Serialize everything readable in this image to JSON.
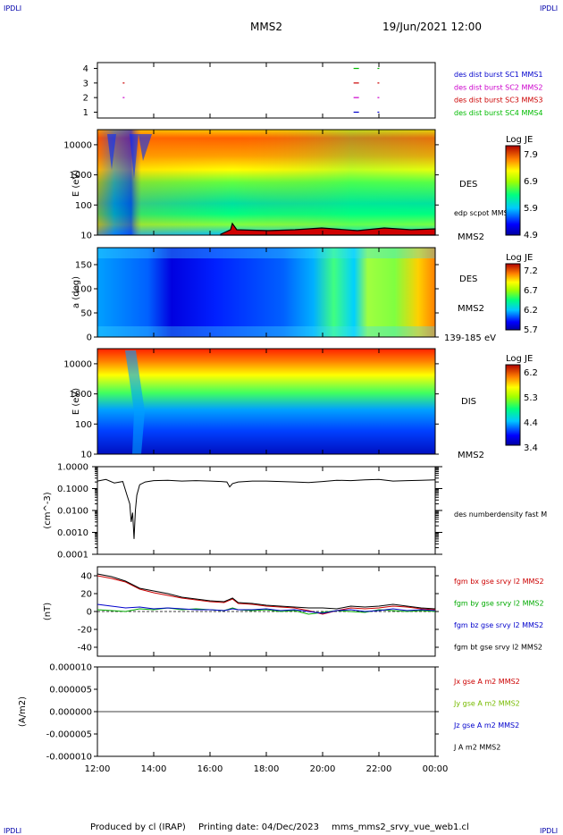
{
  "header": {
    "corner_tl": "IPDLI",
    "corner_tr": "IPDLI",
    "corner_bl": "IPDLI",
    "corner_br": "IPDLI",
    "spacecraft": "MMS2",
    "datetime": "19/Jun/2021 12:00"
  },
  "footer": {
    "producer": "Produced by cl (IRAP)",
    "printing": "Printing date: 04/Dec/2023",
    "script": "mms_mms2_srvy_vue_web1.cl"
  },
  "time_axis": [
    "12:00",
    "14:00",
    "16:00",
    "18:00",
    "20:00",
    "22:00",
    "00:00"
  ],
  "chart_data": [
    {
      "type": "scatter",
      "yticks": [
        "1",
        "2",
        "3",
        "4"
      ],
      "ylim": [
        0.6,
        4.4
      ],
      "series": [
        {
          "name": "des dist burst SC1 MMS1",
          "color": "#0000cc",
          "y": 1,
          "x": [
            21.1,
            21.95
          ]
        },
        {
          "name": "des dist burst SC2 MMS2",
          "color": "#cc00cc",
          "y": 2,
          "x": [
            12.9,
            21.1,
            21.95
          ]
        },
        {
          "name": "des dist burst SC3 MMS3",
          "color": "#cc0000",
          "y": 3,
          "x": [
            12.9,
            21.1,
            21.95
          ]
        },
        {
          "name": "des dist burst SC4 MMS4",
          "color": "#00bb00",
          "y": 4,
          "x": [
            21.1,
            21.95
          ]
        }
      ]
    },
    {
      "type": "heatmap",
      "ylabel": "E (eV)",
      "yticks": [
        "10",
        "100",
        "1000",
        "10000"
      ],
      "instrument": "DES",
      "overlay_label": "edp scpot MMS2",
      "spacecraft": "MMS2",
      "colorbar": {
        "title": "Log JE",
        "ticks": [
          "7.9",
          "6.9",
          "5.9",
          "4.9"
        ]
      }
    },
    {
      "type": "heatmap",
      "ylabel": "a (deg)",
      "yticks": [
        "0",
        "50",
        "100",
        "150"
      ],
      "instrument": "DES",
      "spacecraft": "MMS2",
      "energy_range": "139-185 eV",
      "colorbar": {
        "title": "Log JE",
        "ticks": [
          "7.2",
          "6.7",
          "6.2",
          "5.7"
        ]
      }
    },
    {
      "type": "heatmap",
      "ylabel": "E (eV)",
      "yticks": [
        "10",
        "100",
        "1000",
        "10000"
      ],
      "instrument": "DIS",
      "spacecraft": "MMS2",
      "colorbar": {
        "title": "Log JE",
        "ticks": [
          "6.2",
          "5.3",
          "4.4",
          "3.4"
        ]
      }
    },
    {
      "type": "line",
      "ylabel": "(cm^-3)",
      "log": true,
      "yticks": [
        "1.0000",
        "0.1000",
        "0.0100",
        "0.0010",
        "0.0001"
      ],
      "series": [
        {
          "name": "des numberdensity fast M",
          "color": "#000000",
          "x": [
            12,
            12.3,
            12.6,
            12.9,
            13.05,
            13.15,
            13.2,
            13.25,
            13.3,
            13.35,
            13.4,
            13.5,
            13.7,
            14,
            14.5,
            15,
            15.5,
            16,
            16.4,
            16.6,
            16.7,
            16.8,
            17,
            17.5,
            18,
            18.5,
            19,
            19.5,
            20,
            20.5,
            21,
            21.5,
            22,
            22.5,
            23,
            23.5,
            24
          ],
          "y": [
            0.22,
            0.26,
            0.18,
            0.21,
            0.05,
            0.02,
            0.003,
            0.008,
            0.0005,
            0.01,
            0.05,
            0.15,
            0.2,
            0.23,
            0.24,
            0.22,
            0.23,
            0.22,
            0.21,
            0.2,
            0.12,
            0.17,
            0.2,
            0.22,
            0.22,
            0.21,
            0.2,
            0.19,
            0.21,
            0.24,
            0.23,
            0.25,
            0.26,
            0.22,
            0.23,
            0.24,
            0.25
          ]
        }
      ]
    },
    {
      "type": "line",
      "ylabel": "(nT)",
      "yticks": [
        "40",
        "20",
        "0",
        "-20",
        "-40"
      ],
      "ylim": [
        -50,
        50
      ],
      "x": [
        12,
        12.5,
        13,
        13.5,
        14,
        14.5,
        15,
        15.5,
        16,
        16.5,
        16.8,
        17,
        17.5,
        18,
        18.5,
        19,
        19.5,
        20,
        20.5,
        21,
        21.5,
        22,
        22.5,
        23,
        23.5,
        24
      ],
      "series": [
        {
          "name": "fgm bx gse srvy l2 MMS2",
          "color": "#cc0000",
          "values": [
            40,
            37,
            33,
            25,
            21,
            18,
            15,
            13,
            11,
            10,
            14,
            9,
            8,
            6,
            5,
            4,
            1,
            -3,
            1,
            4,
            3,
            4,
            6,
            5,
            3,
            2
          ]
        },
        {
          "name": "fgm by gse srvy l2 MMS2",
          "color": "#00aa00",
          "values": [
            2,
            1,
            0,
            3,
            2,
            4,
            2,
            3,
            2,
            1,
            4,
            2,
            1,
            2,
            0,
            1,
            -3,
            -1,
            1,
            0,
            -1,
            2,
            1,
            0,
            1,
            0
          ]
        },
        {
          "name": "fgm bz gse srvy l2 MMS2",
          "color": "#0000cc",
          "values": [
            8,
            6,
            4,
            5,
            3,
            4,
            3,
            2,
            2,
            1,
            3,
            2,
            2,
            3,
            1,
            2,
            0,
            -2,
            1,
            2,
            0,
            1,
            3,
            1,
            2,
            1
          ]
        },
        {
          "name": "fgm bt gse srvy l2 MMS2",
          "color": "#000000",
          "values": [
            42,
            39,
            34,
            26,
            23,
            20,
            16,
            14,
            12,
            11,
            15,
            10,
            9,
            7,
            6,
            5,
            4,
            4,
            3,
            6,
            5,
            6,
            8,
            6,
            4,
            3
          ]
        }
      ]
    },
    {
      "type": "line",
      "ylabel": "(A/m2)",
      "yticks": [
        "0.000010",
        "0.000005",
        "0.000000",
        "-0.000005",
        "-0.000010"
      ],
      "ylim": [
        -1e-05,
        1e-05
      ],
      "series": [
        {
          "name": "Jx gse A m2 MMS2",
          "color": "#cc0000"
        },
        {
          "name": "Jy gse A m2 MMS2",
          "color": "#77bb00"
        },
        {
          "name": "Jz gse A m2 MMS2",
          "color": "#0000cc"
        },
        {
          "name": "J A m2 MMS2",
          "color": "#000000"
        }
      ]
    }
  ]
}
